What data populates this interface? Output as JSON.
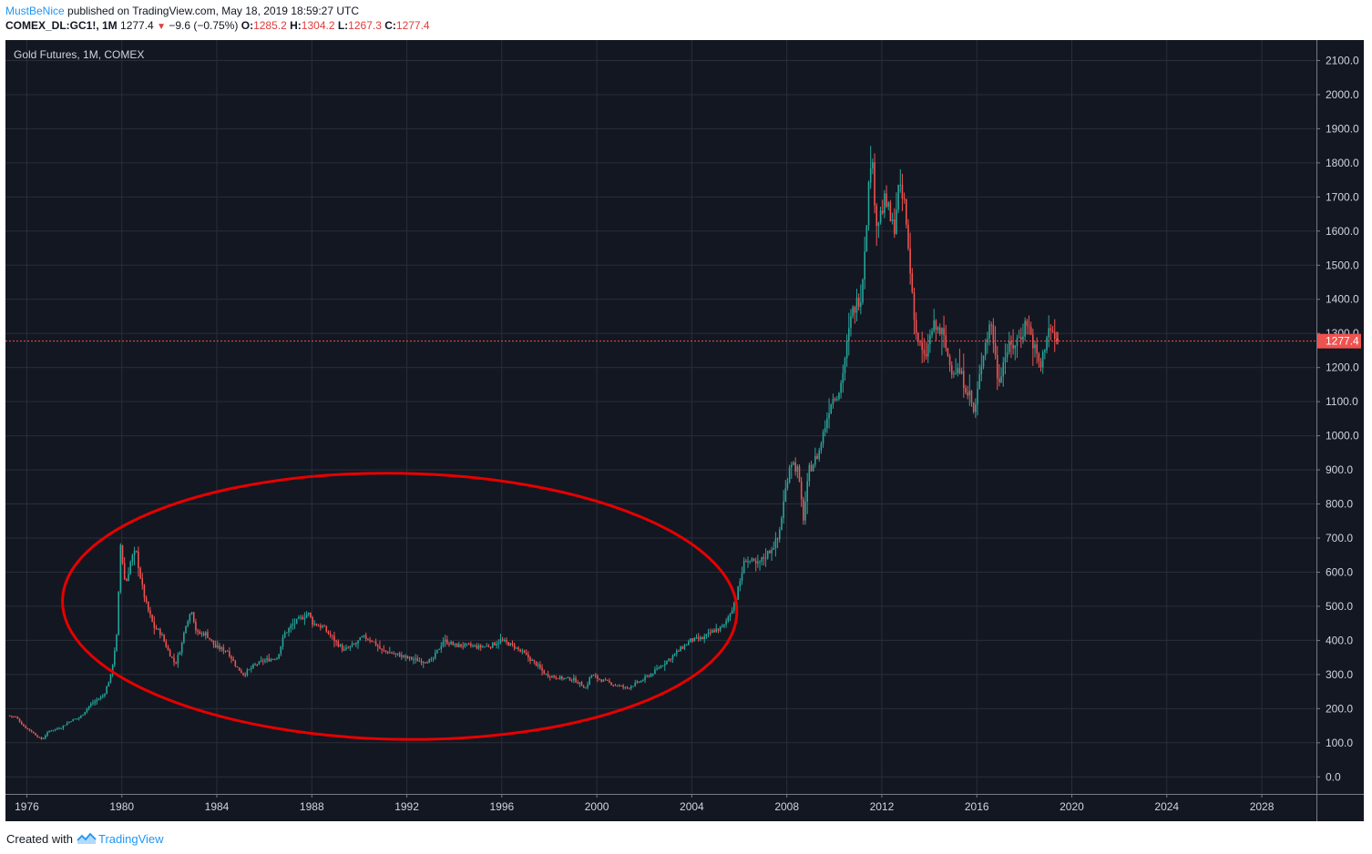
{
  "header": {
    "user": "MustBeNice",
    "published_text": " published on TradingView.com, May 18, 2019 18:59:27 UTC",
    "symbol": "COMEX_DL:GC1!, 1M",
    "last": "1277.4",
    "change": "−9.6 (−0.75%)",
    "o_label": "O:",
    "o_value": "1285.2",
    "h_label": "H:",
    "h_value": "1304.2",
    "l_label": "L:",
    "l_value": "1267.3",
    "c_label": "C:",
    "c_value": "1277.4"
  },
  "footer": {
    "created_with": "Created with",
    "brand": "TradingView"
  },
  "colors": {
    "background": "#131722",
    "grid": "#2a2e39",
    "up": "#26a69a",
    "down": "#ef5350",
    "ellipse": "#e60000",
    "price_line": "#ef5350"
  },
  "chart_data": {
    "type": "candlestick",
    "title": "Gold Futures, 1M, COMEX",
    "xlabel": "",
    "ylabel": "",
    "x_range": [
      1975.1,
      2030.3
    ],
    "y_range": [
      -50,
      2160
    ],
    "x_ticks": [
      1976,
      1980,
      1984,
      1988,
      1992,
      1996,
      2000,
      2004,
      2008,
      2012,
      2016,
      2020,
      2024,
      2028
    ],
    "y_ticks": [
      "0.0",
      "100.0",
      "200.0",
      "300.0",
      "400.0",
      "500.0",
      "600.0",
      "700.0",
      "800.0",
      "900.0",
      "1000.0",
      "1100.0",
      "1200.0",
      "1300.0",
      "1400.0",
      "1500.0",
      "1600.0",
      "1700.0",
      "1800.0",
      "1900.0",
      "2000.0",
      "2100.0"
    ],
    "grid": true,
    "last_price": 1277.4,
    "last_price_label": "1277.4",
    "annotation": {
      "shape": "ellipse",
      "center_year": 1991.7,
      "center_price": 500,
      "half_width_years": 14.2,
      "half_height_price": 390,
      "tilt_deg": 1
    },
    "price_path": [
      [
        1975.25,
        180
      ],
      [
        1975.6,
        175
      ],
      [
        1975.9,
        150
      ],
      [
        1976.3,
        130
      ],
      [
        1976.65,
        110
      ],
      [
        1976.75,
        115
      ],
      [
        1977.0,
        135
      ],
      [
        1977.5,
        145
      ],
      [
        1977.9,
        165
      ],
      [
        1978.3,
        175
      ],
      [
        1978.7,
        210
      ],
      [
        1979.0,
        225
      ],
      [
        1979.3,
        240
      ],
      [
        1979.6,
        300
      ],
      [
        1979.85,
        420
      ],
      [
        1980.0,
        680
      ],
      [
        1980.2,
        560
      ],
      [
        1980.45,
        640
      ],
      [
        1980.65,
        660
      ],
      [
        1980.9,
        560
      ],
      [
        1981.1,
        500
      ],
      [
        1981.4,
        440
      ],
      [
        1981.7,
        420
      ],
      [
        1982.0,
        370
      ],
      [
        1982.3,
        330
      ],
      [
        1982.55,
        380
      ],
      [
        1982.75,
        450
      ],
      [
        1983.0,
        490
      ],
      [
        1983.2,
        420
      ],
      [
        1983.6,
        420
      ],
      [
        1984.0,
        380
      ],
      [
        1984.5,
        370
      ],
      [
        1984.9,
        320
      ],
      [
        1985.2,
        300
      ],
      [
        1985.6,
        325
      ],
      [
        1986.0,
        340
      ],
      [
        1986.6,
        350
      ],
      [
        1986.9,
        420
      ],
      [
        1987.3,
        450
      ],
      [
        1987.9,
        480
      ],
      [
        1988.1,
        450
      ],
      [
        1988.5,
        440
      ],
      [
        1988.9,
        410
      ],
      [
        1989.4,
        370
      ],
      [
        1989.9,
        390
      ],
      [
        1990.2,
        410
      ],
      [
        1990.6,
        400
      ],
      [
        1991.0,
        370
      ],
      [
        1991.6,
        360
      ],
      [
        1992.0,
        350
      ],
      [
        1992.6,
        340
      ],
      [
        1993.1,
        340
      ],
      [
        1993.6,
        400
      ],
      [
        1994.1,
        385
      ],
      [
        1994.6,
        385
      ],
      [
        1995.1,
        380
      ],
      [
        1995.6,
        385
      ],
      [
        1996.0,
        400
      ],
      [
        1996.5,
        385
      ],
      [
        1997.0,
        360
      ],
      [
        1997.5,
        330
      ],
      [
        1997.9,
        300
      ],
      [
        1998.5,
        290
      ],
      [
        1999.1,
        285
      ],
      [
        1999.6,
        260
      ],
      [
        1999.8,
        300
      ],
      [
        2000.2,
        285
      ],
      [
        2000.8,
        270
      ],
      [
        2001.3,
        260
      ],
      [
        2001.9,
        280
      ],
      [
        2002.5,
        310
      ],
      [
        2003.0,
        340
      ],
      [
        2003.5,
        370
      ],
      [
        2004.0,
        400
      ],
      [
        2004.5,
        405
      ],
      [
        2005.0,
        430
      ],
      [
        2005.4,
        440
      ],
      [
        2005.9,
        520
      ],
      [
        2006.3,
        640
      ],
      [
        2006.8,
        620
      ],
      [
        2007.3,
        660
      ],
      [
        2007.7,
        700
      ],
      [
        2007.95,
        820
      ],
      [
        2008.2,
        930
      ],
      [
        2008.5,
        900
      ],
      [
        2008.75,
        760
      ],
      [
        2009.0,
        900
      ],
      [
        2009.4,
        950
      ],
      [
        2009.9,
        1100
      ],
      [
        2010.3,
        1140
      ],
      [
        2010.8,
        1360
      ],
      [
        2011.2,
        1420
      ],
      [
        2011.6,
        1830
      ],
      [
        2011.85,
        1620
      ],
      [
        2012.2,
        1690
      ],
      [
        2012.55,
        1600
      ],
      [
        2012.75,
        1720
      ],
      [
        2013.0,
        1680
      ],
      [
        2013.25,
        1480
      ],
      [
        2013.5,
        1300
      ],
      [
        2013.85,
        1220
      ],
      [
        2014.2,
        1320
      ],
      [
        2014.6,
        1300
      ],
      [
        2014.95,
        1200
      ],
      [
        2015.3,
        1190
      ],
      [
        2015.75,
        1120
      ],
      [
        2015.95,
        1060
      ],
      [
        2016.3,
        1240
      ],
      [
        2016.65,
        1340
      ],
      [
        2016.95,
        1160
      ],
      [
        2017.3,
        1250
      ],
      [
        2017.65,
        1270
      ],
      [
        2017.95,
        1300
      ],
      [
        2018.15,
        1340
      ],
      [
        2018.55,
        1240
      ],
      [
        2018.75,
        1200
      ],
      [
        2019.05,
        1320
      ],
      [
        2019.38,
        1277.4
      ]
    ]
  }
}
